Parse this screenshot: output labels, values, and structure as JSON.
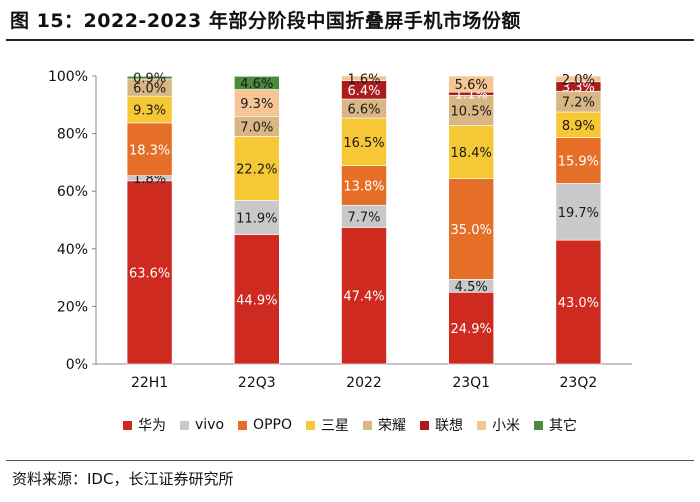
{
  "header": {
    "title": "图 15：2022-2023 年部分阶段中国折叠屏手机市场份额"
  },
  "footer": {
    "source": "资料来源：IDC，长江证券研究所"
  },
  "chart_data": {
    "type": "bar",
    "stacked": true,
    "title": "图 15：2022-2023 年部分阶段中国折叠屏手机市场份额",
    "categories": [
      "22H1",
      "22Q3",
      "2022",
      "23Q1",
      "23Q2"
    ],
    "ylim": [
      0,
      100
    ],
    "yticks": [
      0,
      20,
      40,
      60,
      80,
      100
    ],
    "ytick_labels": [
      "0%",
      "20%",
      "40%",
      "60%",
      "80%",
      "100%"
    ],
    "legend_position": "bottom",
    "series": [
      {
        "name": "华为",
        "color": "#cf2a1f",
        "values": [
          63.6,
          44.9,
          47.4,
          24.9,
          43.0
        ],
        "labels": [
          "63.6%",
          "44.9%",
          "47.4%",
          "24.9%",
          "43.0%"
        ]
      },
      {
        "name": "vivo",
        "color": "#c9c9c9",
        "values": [
          1.8,
          11.9,
          7.7,
          4.5,
          19.7
        ],
        "labels": [
          "1.8%",
          "11.9%",
          "7.7%",
          "4.5%",
          "19.7%"
        ]
      },
      {
        "name": "OPPO",
        "color": "#e66f28",
        "values": [
          18.3,
          0,
          13.8,
          35.0,
          15.9
        ],
        "labels": [
          "18.3%",
          "",
          "13.8%",
          "35.0%",
          "15.9%"
        ]
      },
      {
        "name": "三星",
        "color": "#f6c835",
        "values": [
          9.3,
          22.2,
          16.5,
          18.4,
          8.9
        ],
        "labels": [
          "9.3%",
          "22.2%",
          "16.5%",
          "18.4%",
          "8.9%"
        ]
      },
      {
        "name": "荣耀",
        "color": "#d9b784",
        "values": [
          6.0,
          7.0,
          6.6,
          10.5,
          7.2
        ],
        "labels": [
          "6.0%",
          "7.0%",
          "6.6%",
          "10.5%",
          "7.2%"
        ]
      },
      {
        "name": "联想",
        "color": "#ad1c1c",
        "values": [
          0,
          0,
          6.4,
          1.1,
          3.3
        ],
        "labels": [
          "",
          "",
          "6.4%",
          "1.1%",
          "3.3%"
        ]
      },
      {
        "name": "小米",
        "color": "#f5c596",
        "values": [
          0,
          9.3,
          1.6,
          5.6,
          2.0
        ],
        "labels": [
          "",
          "9.3%",
          "1.6%",
          "5.6%",
          "2.0%"
        ]
      },
      {
        "name": "其它",
        "color": "#4a8a3a",
        "values": [
          0.9,
          4.6,
          0,
          0,
          0
        ],
        "labels": [
          "0.9%",
          "4.6%",
          "",
          "",
          ""
        ]
      }
    ]
  }
}
